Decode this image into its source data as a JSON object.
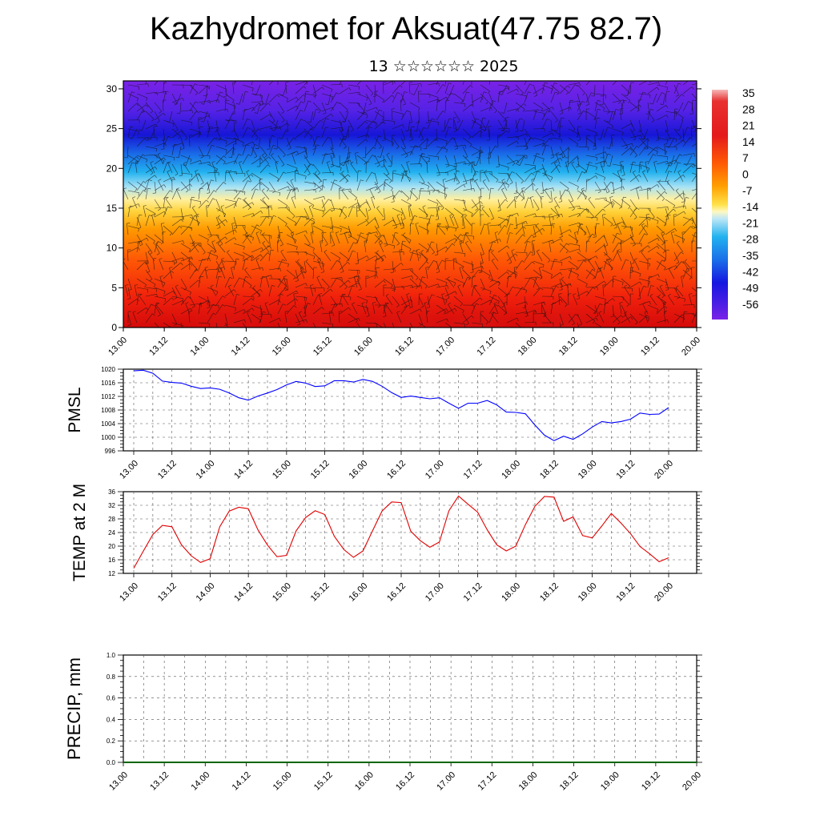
{
  "title": "Kazhydromet for Aksuat(47.75 82.7)",
  "subtitle": "13 ☆☆☆☆☆☆ 2025",
  "chart_data": [
    {
      "type": "heatmap",
      "description_label": "",
      "x_tick_labels": [
        "13.00",
        "13.12",
        "14.00",
        "14.12",
        "15.00",
        "15.12",
        "16.00",
        "16.12",
        "17.00",
        "17.12",
        "18.00",
        "18.12",
        "19.00",
        "19.12",
        "20.00"
      ],
      "y_ticks": [
        0,
        5,
        10,
        15,
        20,
        25,
        30
      ],
      "ylim": [
        0,
        31
      ],
      "colorbar_labels": [
        "35",
        "28",
        "21",
        "14",
        "7",
        "0",
        "-7",
        "-14",
        "-21",
        "-28",
        "-35",
        "-42",
        "-49",
        "-56"
      ],
      "colorbar_range": [
        -60,
        38
      ],
      "colors": {
        "hot": "#e41a1c",
        "warm": "#ff9a00",
        "neutral": "#ffee70",
        "cool": "#1fb4f0",
        "cold": "#1616e0",
        "coldest": "#7a22e6"
      },
      "wind_barbs": true
    },
    {
      "type": "line",
      "ylabel": "PMSL",
      "color": "#0000ff",
      "ylim": [
        996,
        1020
      ],
      "y_ticks": [
        996,
        1000,
        1004,
        1008,
        1012,
        1016,
        1020
      ],
      "x_tick_labels": [
        "13.00",
        "13.12",
        "14.00",
        "14.12",
        "15.00",
        "15.12",
        "16.00",
        "16.12",
        "17.00",
        "17.12",
        "18.00",
        "18.12",
        "19.00",
        "19.12",
        "20.00"
      ],
      "values": [
        1019.5,
        1019.7,
        1018.8,
        1016.5,
        1016.1,
        1015.9,
        1015.0,
        1014.3,
        1014.5,
        1014.1,
        1013.0,
        1011.6,
        1010.9,
        1012.1,
        1013.0,
        1014.0,
        1015.4,
        1016.4,
        1015.9,
        1014.9,
        1015.1,
        1016.6,
        1016.6,
        1016.2,
        1017.0,
        1016.4,
        1015.0,
        1013.1,
        1011.7,
        1012.1,
        1011.7,
        1011.3,
        1011.6,
        1010.0,
        1008.5,
        1010.0,
        1010.0,
        1010.8,
        1009.5,
        1007.4,
        1007.3,
        1006.9,
        1003.6,
        1000.6,
        999.0,
        1000.3,
        999.4,
        1001.0,
        1003.0,
        1004.6,
        1004.2,
        1004.6,
        1005.3,
        1007.1,
        1006.7,
        1006.8,
        1008.7
      ]
    },
    {
      "type": "line",
      "ylabel": "TEMP at 2 M",
      "color": "#e00000",
      "ylim": [
        12,
        36
      ],
      "y_ticks": [
        12,
        16,
        20,
        24,
        28,
        32,
        36
      ],
      "x_tick_labels": [
        "13.00",
        "13.12",
        "14.00",
        "14.12",
        "15.00",
        "15.12",
        "16.00",
        "16.12",
        "17.00",
        "17.12",
        "18.00",
        "18.12",
        "19.00",
        "19.12",
        "20.00"
      ],
      "values": [
        13.5,
        18.5,
        23.4,
        26.1,
        25.7,
        20.4,
        17.2,
        15.2,
        16.3,
        25.7,
        30.3,
        31.4,
        31.0,
        24.8,
        20.3,
        16.9,
        17.3,
        24.5,
        28.4,
        30.4,
        29.3,
        22.9,
        19.0,
        16.7,
        18.6,
        24.5,
        30.3,
        33.0,
        32.8,
        24.4,
        21.6,
        19.7,
        21.2,
        30.4,
        34.7,
        32.3,
        30.0,
        24.8,
        20.4,
        18.6,
        20.0,
        26.3,
        31.7,
        34.6,
        34.4,
        27.3,
        28.6,
        23.1,
        22.4,
        25.9,
        29.6,
        26.8,
        23.7,
        19.9,
        17.8,
        15.4,
        16.6
      ]
    },
    {
      "type": "line",
      "ylabel": "PRECIP, mm",
      "color": "#006600",
      "ylim": [
        0,
        1.0
      ],
      "y_ticks": [
        "0.0",
        "0.2",
        "0.4",
        "0.6",
        "0.8",
        "1.0"
      ],
      "x_tick_labels": [
        "13.00",
        "13.12",
        "14.00",
        "14.12",
        "15.00",
        "15.12",
        "16.00",
        "16.12",
        "17.00",
        "17.12",
        "18.00",
        "18.12",
        "19.00",
        "19.12",
        "20.00"
      ],
      "values": [
        0,
        0,
        0,
        0,
        0,
        0,
        0,
        0,
        0,
        0,
        0,
        0,
        0,
        0,
        0,
        0,
        0,
        0,
        0,
        0,
        0,
        0,
        0,
        0,
        0,
        0,
        0,
        0,
        0,
        0,
        0,
        0,
        0,
        0,
        0,
        0,
        0,
        0,
        0,
        0,
        0,
        0,
        0,
        0,
        0,
        0,
        0,
        0,
        0,
        0,
        0,
        0,
        0,
        0,
        0,
        0,
        0
      ]
    }
  ]
}
